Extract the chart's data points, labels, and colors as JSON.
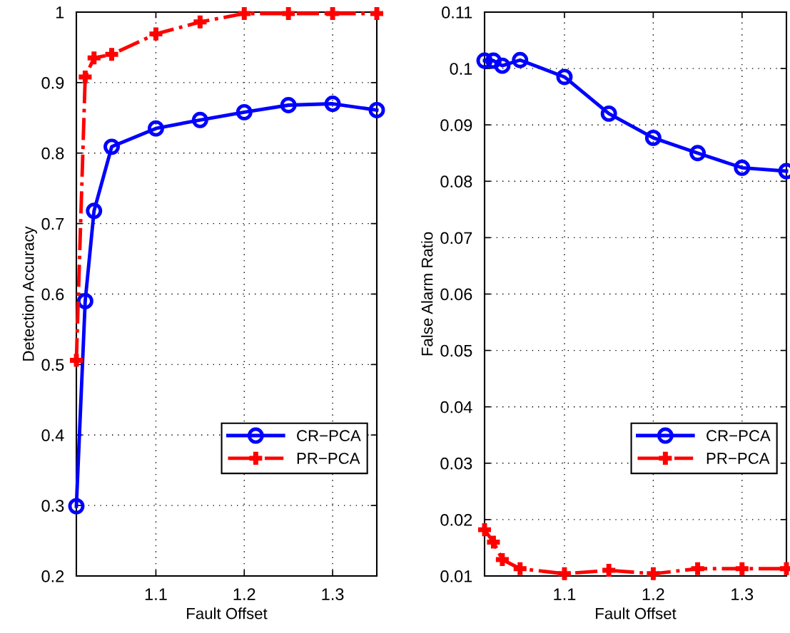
{
  "chart_data": [
    {
      "type": "line",
      "xlabel": "Fault Offset",
      "ylabel": "Detection Accuracy",
      "xlim": [
        1.01,
        1.35
      ],
      "xticks": [
        1.1,
        1.2,
        1.3
      ],
      "ylim": [
        0.2,
        1
      ],
      "yticks": [
        0.2,
        0.3,
        0.4,
        0.5,
        0.6,
        0.7,
        0.8,
        0.9,
        1
      ],
      "grid": true,
      "legend": "lower right",
      "x": [
        1.01,
        1.02,
        1.03,
        1.05,
        1.1,
        1.15,
        1.2,
        1.25,
        1.3,
        1.35
      ],
      "series": [
        {
          "name": "CR−PCA",
          "color": "#0000ff",
          "marker": "circle",
          "line_style": "solid",
          "values": [
            0.299,
            0.59,
            0.718,
            0.809,
            0.835,
            0.847,
            0.858,
            0.868,
            0.87,
            0.861
          ]
        },
        {
          "name": "PR−PCA",
          "color": "#ff0000",
          "marker": "cross",
          "line_style": "dashdot",
          "values": [
            0.506,
            0.908,
            0.935,
            0.94,
            0.969,
            0.986,
            0.998,
            0.998,
            0.998,
            0.998
          ]
        }
      ]
    },
    {
      "type": "line",
      "xlabel": "Fault Offset",
      "ylabel": "False Alarm Ratio",
      "xlim": [
        1.01,
        1.35
      ],
      "xticks": [
        1.1,
        1.2,
        1.3
      ],
      "ylim": [
        0.01,
        0.11
      ],
      "yticks": [
        0.01,
        0.02,
        0.03,
        0.04,
        0.05,
        0.06,
        0.07,
        0.08,
        0.09,
        0.1,
        0.11
      ],
      "grid": true,
      "legend": "lower right",
      "x": [
        1.01,
        1.02,
        1.03,
        1.05,
        1.1,
        1.15,
        1.2,
        1.25,
        1.3,
        1.35
      ],
      "series": [
        {
          "name": "CR−PCA",
          "color": "#0000ff",
          "marker": "circle",
          "line_style": "solid",
          "values": [
            0.1014,
            0.1014,
            0.1005,
            0.1015,
            0.0985,
            0.092,
            0.0877,
            0.085,
            0.0824,
            0.0818
          ]
        },
        {
          "name": "PR−PCA",
          "color": "#ff0000",
          "marker": "cross",
          "line_style": "dashdot",
          "values": [
            0.0182,
            0.016,
            0.0129,
            0.0113,
            0.0104,
            0.011,
            0.0104,
            0.0113,
            0.0113,
            0.0113
          ]
        }
      ]
    }
  ]
}
